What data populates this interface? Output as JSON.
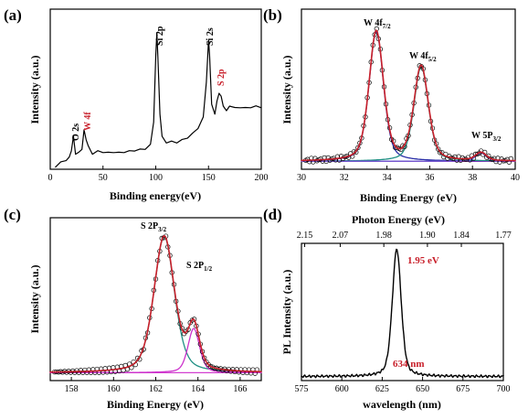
{
  "colors": {
    "raw": "#000000",
    "envelope": "#c8202b",
    "w4f72": "#2b2fa8",
    "w4f52": "#1f8f84",
    "w5p": "#6a5acd",
    "baseline": "#d23fd0",
    "s2p32": "#1f8f84",
    "s2p12": "#cc33cc",
    "label_red": "#c8202b"
  },
  "chart_data": [
    {
      "panel_label": "(a)",
      "type": "line",
      "xlabel": "Binding energy(eV)",
      "ylabel": "Intensity (a.u.)",
      "xlim": [
        0,
        200
      ],
      "xticks": [
        0,
        50,
        100,
        150,
        200
      ],
      "annotations": [
        {
          "text": "O 2s",
          "x": 22,
          "color": "black",
          "rotated": true
        },
        {
          "text": "W 4f",
          "x": 33,
          "color": "red",
          "rotated": true
        },
        {
          "text": "Si 2p",
          "x": 101,
          "color": "black",
          "rotated": true
        },
        {
          "text": "Si 2s",
          "x": 150,
          "color": "black",
          "rotated": true
        },
        {
          "text": "S 2p",
          "x": 162,
          "color": "red",
          "rotated": true
        }
      ],
      "series": [
        {
          "x": [
            5,
            10,
            15,
            18,
            20,
            22,
            24,
            27,
            30,
            32,
            34,
            36,
            40,
            45,
            50,
            55,
            60,
            65,
            70,
            75,
            80,
            85,
            90,
            95,
            98,
            100,
            101,
            102,
            104,
            106,
            110,
            115,
            120,
            125,
            130,
            135,
            140,
            145,
            148,
            150,
            151,
            153,
            156,
            158,
            160,
            162,
            164,
            167,
            170,
            175,
            180,
            185,
            190,
            195,
            200
          ],
          "y": [
            0.02,
            0.04,
            0.06,
            0.07,
            0.12,
            0.2,
            0.1,
            0.1,
            0.13,
            0.24,
            0.19,
            0.14,
            0.1,
            0.11,
            0.11,
            0.1,
            0.11,
            0.1,
            0.11,
            0.11,
            0.12,
            0.12,
            0.13,
            0.15,
            0.3,
            0.7,
            0.86,
            0.7,
            0.35,
            0.2,
            0.17,
            0.17,
            0.17,
            0.18,
            0.2,
            0.22,
            0.26,
            0.32,
            0.55,
            0.8,
            0.72,
            0.4,
            0.35,
            0.42,
            0.48,
            0.45,
            0.4,
            0.36,
            0.4,
            0.38,
            0.39,
            0.38,
            0.39,
            0.39,
            0.39
          ]
        }
      ]
    },
    {
      "panel_label": "(b)",
      "type": "line",
      "xlabel": "Binding Energy (eV)",
      "ylabel": "Intensity (a.u.)",
      "xlim": [
        30,
        40
      ],
      "xticks": [
        30,
        32,
        34,
        36,
        38,
        40
      ],
      "annotations": [
        {
          "text": "W 4f",
          "sub": "7/2",
          "x": 33.5
        },
        {
          "text": "W 4f",
          "sub": "5/2",
          "x": 35.7
        },
        {
          "text": "W 5P",
          "sub": "3/2",
          "x": 38.5
        }
      ],
      "series": [
        {
          "name": "W 4f7/2",
          "center": 33.5,
          "height": 0.81,
          "width": 0.8,
          "baseline": 0.05,
          "color_key": "w4f72"
        },
        {
          "name": "W 4f5/2",
          "center": 35.6,
          "height": 0.59,
          "width": 0.8,
          "baseline": 0.05,
          "color_key": "w4f52"
        },
        {
          "name": "W 5p3/2",
          "center": 38.4,
          "height": 0.05,
          "width": 0.6,
          "baseline": 0.05,
          "color_key": "w5p"
        },
        {
          "name": "background",
          "constant": 0.05,
          "color_key": "baseline"
        }
      ]
    },
    {
      "panel_label": "(c)",
      "type": "line",
      "xlabel": "Binding Energy (eV)",
      "ylabel": "Intensity (a.u.)",
      "xlim": [
        157,
        167
      ],
      "xticks": [
        158,
        160,
        162,
        164,
        166
      ],
      "annotations": [
        {
          "text": "S 2P",
          "sub": "3/2",
          "x": 162.4
        },
        {
          "text": "S 2P",
          "sub": "1/2",
          "x": 164.0
        }
      ],
      "series": [
        {
          "name": "S 2p3/2",
          "center": 162.4,
          "height": 0.86,
          "width": 1.15,
          "baseline": 0.0,
          "color_key": "s2p32"
        },
        {
          "name": "S 2p1/2",
          "center": 163.8,
          "height": 0.28,
          "width": 0.65,
          "baseline": 0.0,
          "color_key": "s2p12"
        },
        {
          "name": "background",
          "constant": 0.02,
          "color_key": "baseline"
        }
      ]
    },
    {
      "panel_label": "(d)",
      "type": "line",
      "xlabel": "wavelength (nm)",
      "ylabel": "PL Intensity (a.u.)",
      "top_xlabel": "Photon Energy (eV)",
      "xlim": [
        575,
        700
      ],
      "xticks": [
        575,
        600,
        625,
        650,
        675,
        700
      ],
      "top_xticks": [
        {
          "label": "2.15",
          "nm": 577
        },
        {
          "label": "2.07",
          "nm": 599
        },
        {
          "label": "1.98",
          "nm": 626
        },
        {
          "label": "1.90",
          "nm": 653
        },
        {
          "label": "1.84",
          "nm": 674
        },
        {
          "label": "1.77",
          "nm": 700
        }
      ],
      "annotations": [
        {
          "text": "1.95 eV",
          "x": 634,
          "color": "red"
        },
        {
          "text": "634 nm",
          "x": 634,
          "color": "red"
        }
      ],
      "series": [
        {
          "name": "PL",
          "center": 634,
          "height": 0.93,
          "width": 6.5,
          "baseline": 0.03
        }
      ]
    }
  ]
}
